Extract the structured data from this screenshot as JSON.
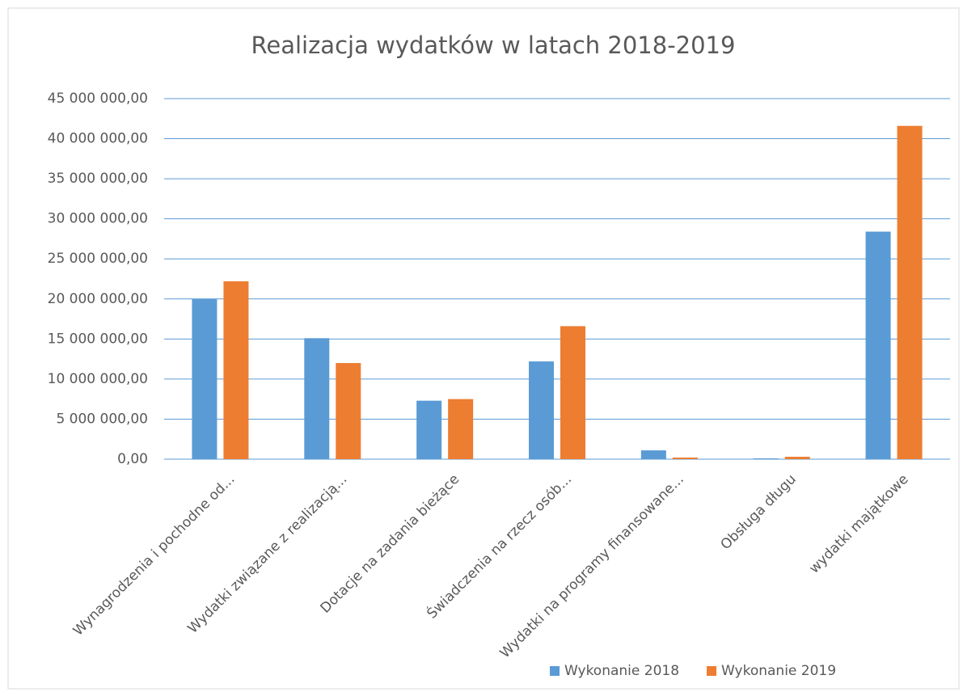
{
  "chart_data": {
    "type": "bar",
    "title": "Realizacja wydatków w latach 2018-2019",
    "categories": [
      "Wynagrodzenia i pochodne od...",
      "Wydatki związane z realizacją...",
      "Dotacje na zadania bieżące",
      "Świadczenia na rzecz osób...",
      "Wydatki na programy finansowane...",
      "Obsługa długu",
      "wydatki majątkowe"
    ],
    "series": [
      {
        "name": "Wykonanie 2018",
        "color": "#5b9bd5",
        "values": [
          20000000,
          15100000,
          7300000,
          12200000,
          1100000,
          100000,
          28400000
        ]
      },
      {
        "name": "Wykonanie 2019",
        "color": "#ed7d31",
        "values": [
          22200000,
          12000000,
          7500000,
          16600000,
          200000,
          300000,
          41600000
        ]
      }
    ],
    "ylim": [
      0,
      45000000
    ],
    "yticks": [
      {
        "value": 0,
        "label": "0,00"
      },
      {
        "value": 5000000,
        "label": "5 000 000,00"
      },
      {
        "value": 10000000,
        "label": "10 000 000,00"
      },
      {
        "value": 15000000,
        "label": "15 000 000,00"
      },
      {
        "value": 20000000,
        "label": "20 000 000,00"
      },
      {
        "value": 25000000,
        "label": "25 000 000,00"
      },
      {
        "value": 30000000,
        "label": "30 000 000,00"
      },
      {
        "value": 35000000,
        "label": "35 000 000,00"
      },
      {
        "value": 40000000,
        "label": "40 000 000,00"
      },
      {
        "value": 45000000,
        "label": "45 000 000,00"
      }
    ],
    "grid": true,
    "legend": "bottom-right"
  }
}
